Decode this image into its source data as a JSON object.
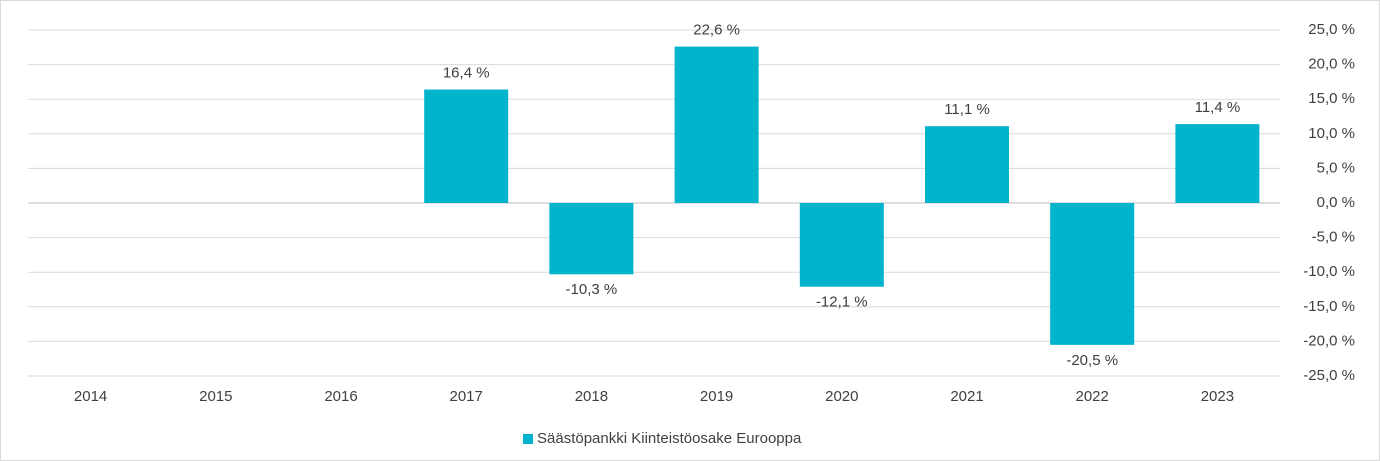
{
  "chart_data": {
    "type": "bar",
    "categories": [
      "2014",
      "2015",
      "2016",
      "2017",
      "2018",
      "2019",
      "2020",
      "2021",
      "2022",
      "2023"
    ],
    "series": [
      {
        "name": "Säästöpankki Kiinteistöosake Eurooppa",
        "color": "#00b4cc",
        "values": [
          null,
          null,
          null,
          16.4,
          -10.3,
          22.6,
          -12.1,
          11.1,
          -20.5,
          11.4
        ],
        "value_labels": [
          null,
          null,
          null,
          "16,4 %",
          "-10,3 %",
          "22,6 %",
          "-12,1 %",
          "11,1 %",
          "-20,5 %",
          "11,4 %"
        ]
      }
    ],
    "ylim": [
      -25,
      25
    ],
    "yticks": [
      {
        "value": 25,
        "label": "25,0 %"
      },
      {
        "value": 20,
        "label": "20,0 %"
      },
      {
        "value": 15,
        "label": "15,0 %"
      },
      {
        "value": 10,
        "label": "10,0 %"
      },
      {
        "value": 5,
        "label": "5,0 %"
      },
      {
        "value": 0,
        "label": "0,0 %"
      },
      {
        "value": -5,
        "label": "-5,0 %"
      },
      {
        "value": -10,
        "label": "-10,0 %"
      },
      {
        "value": -15,
        "label": "-15,0 %"
      },
      {
        "value": -20,
        "label": "-20,0 %"
      },
      {
        "value": -25,
        "label": "-25,0 %"
      }
    ],
    "y_axis_side": "right",
    "grid": true,
    "legend": "bottom"
  }
}
